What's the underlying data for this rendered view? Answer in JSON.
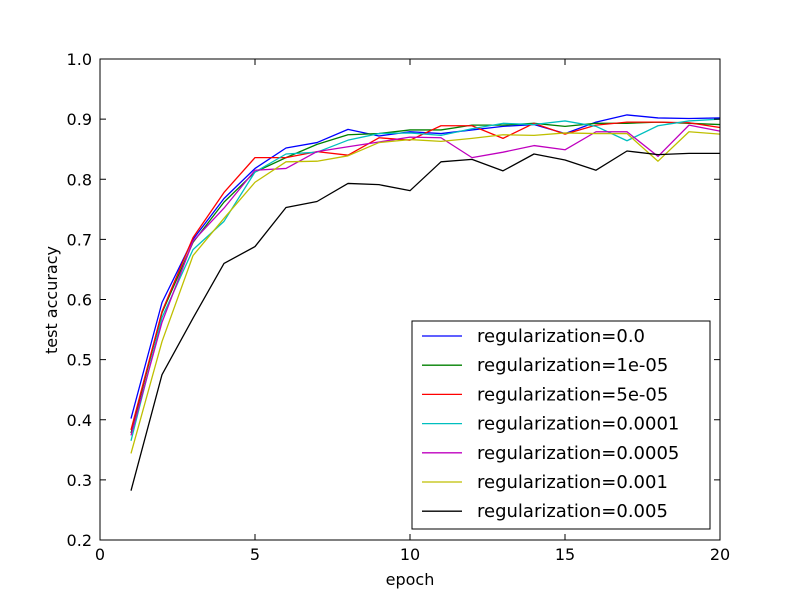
{
  "chart_data": {
    "type": "line",
    "title": "",
    "xlabel": "epoch",
    "ylabel": "test accuracy",
    "xlim": [
      0,
      20
    ],
    "ylim": [
      0.2,
      1.0
    ],
    "xticks": [
      0,
      5,
      10,
      15,
      20
    ],
    "yticks": [
      0.2,
      0.3,
      0.4,
      0.5,
      0.6,
      0.7,
      0.8,
      0.9,
      1.0
    ],
    "grid": false,
    "legend_position": "lower-right",
    "x": [
      1,
      2,
      3,
      4,
      5,
      6,
      7,
      8,
      9,
      10,
      11,
      12,
      13,
      14,
      15,
      16,
      17,
      18,
      19,
      20
    ],
    "series": [
      {
        "name": "regularization=0.0",
        "color": "#0000ff",
        "values": [
          0.402,
          0.595,
          0.7,
          0.768,
          0.818,
          0.852,
          0.861,
          0.883,
          0.872,
          0.879,
          0.876,
          0.882,
          0.888,
          0.891,
          0.876,
          0.895,
          0.907,
          0.902,
          0.901,
          0.902
        ]
      },
      {
        "name": "regularization=1e-05",
        "color": "#008000",
        "values": [
          0.378,
          0.578,
          0.695,
          0.762,
          0.812,
          0.836,
          0.858,
          0.874,
          0.876,
          0.882,
          0.882,
          0.89,
          0.89,
          0.893,
          0.888,
          0.893,
          0.893,
          0.895,
          0.893,
          0.891
        ]
      },
      {
        "name": "regularization=5e-05",
        "color": "#ff0000",
        "values": [
          0.383,
          0.58,
          0.703,
          0.778,
          0.836,
          0.836,
          0.846,
          0.84,
          0.869,
          0.865,
          0.889,
          0.889,
          0.868,
          0.893,
          0.875,
          0.89,
          0.895,
          0.895,
          0.894,
          0.886
        ]
      },
      {
        "name": "regularization=0.0001",
        "color": "#00bfbf",
        "values": [
          0.365,
          0.57,
          0.683,
          0.73,
          0.812,
          0.842,
          0.845,
          0.865,
          0.876,
          0.877,
          0.873,
          0.884,
          0.893,
          0.891,
          0.897,
          0.888,
          0.864,
          0.889,
          0.897,
          0.9
        ]
      },
      {
        "name": "regularization=0.0005",
        "color": "#bf00bf",
        "values": [
          0.374,
          0.562,
          0.697,
          0.752,
          0.815,
          0.818,
          0.846,
          0.854,
          0.862,
          0.87,
          0.869,
          0.836,
          0.845,
          0.856,
          0.849,
          0.879,
          0.879,
          0.838,
          0.89,
          0.88
        ]
      },
      {
        "name": "regularization=0.001",
        "color": "#bfbf00",
        "values": [
          0.344,
          0.53,
          0.673,
          0.735,
          0.795,
          0.829,
          0.83,
          0.839,
          0.861,
          0.866,
          0.863,
          0.868,
          0.874,
          0.873,
          0.877,
          0.876,
          0.876,
          0.83,
          0.879,
          0.875
        ]
      },
      {
        "name": "regularization=0.005",
        "color": "#000000",
        "values": [
          0.282,
          0.475,
          0.569,
          0.66,
          0.688,
          0.753,
          0.763,
          0.793,
          0.791,
          0.781,
          0.829,
          0.833,
          0.814,
          0.842,
          0.832,
          0.815,
          0.847,
          0.841,
          0.843,
          0.843
        ]
      }
    ]
  }
}
